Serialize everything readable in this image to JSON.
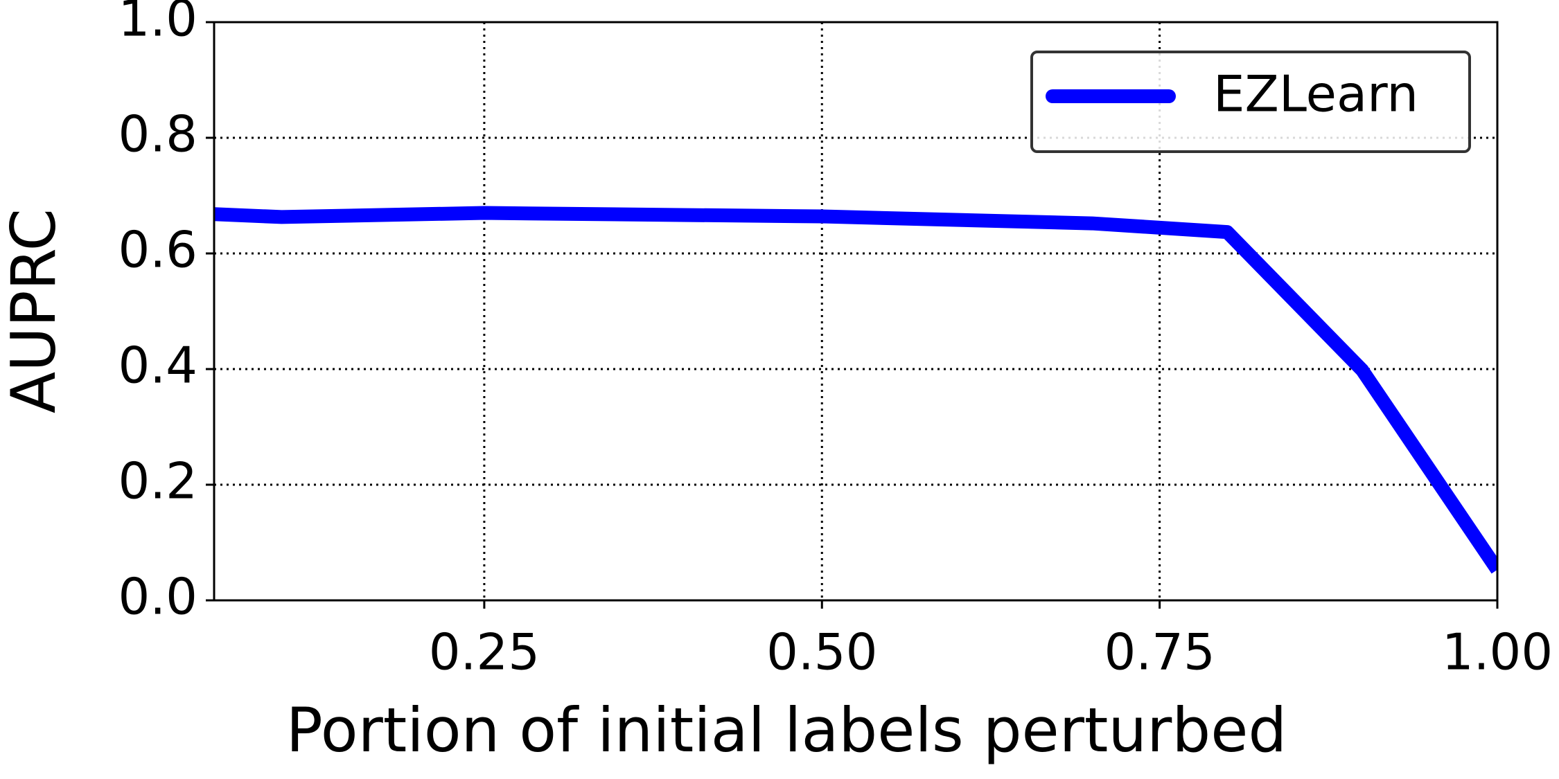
{
  "chart_data": {
    "type": "line",
    "x_label": "Portion of initial labels perturbed",
    "y_label": "AUPRC",
    "x": [
      0.05,
      0.1,
      0.25,
      0.5,
      0.7,
      0.8,
      0.9,
      1.0
    ],
    "series": [
      {
        "name": "EZLearn",
        "color": "#0000ff",
        "values": [
          0.668,
          0.663,
          0.67,
          0.664,
          0.652,
          0.637,
          0.398,
          0.053
        ]
      }
    ],
    "xlim": [
      0.05,
      1.0
    ],
    "xticks": [
      {
        "value": 0.25,
        "label": "0.25"
      },
      {
        "value": 0.5,
        "label": "0.50"
      },
      {
        "value": 0.75,
        "label": "0.75"
      },
      {
        "value": 1.0,
        "label": "1.00"
      }
    ],
    "ylim": [
      0,
      1
    ],
    "yticks": [
      {
        "value": 0,
        "label": "0.0"
      },
      0.2,
      0.4,
      0.6,
      0.8,
      {
        "value": 1,
        "label": "1.0"
      }
    ],
    "grid": true,
    "legend": "upper right"
  }
}
